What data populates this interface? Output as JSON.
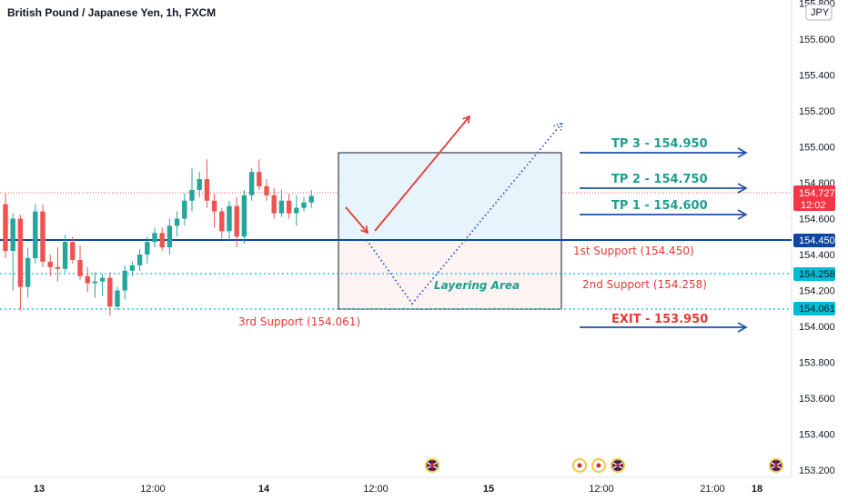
{
  "header": {
    "title": "British Pound / Japanese Yen, 1h, FXCM"
  },
  "currency_badge": "JPY",
  "price_axis": {
    "ticks": [
      "155.800",
      "155.600",
      "155.400",
      "155.200",
      "155.000",
      "154.800",
      "154.600",
      "154.400",
      "154.200",
      "154.000",
      "153.800",
      "153.600",
      "153.400",
      "153.200"
    ]
  },
  "time_axis": {
    "ticks": [
      "13",
      "12:00",
      "14",
      "12:00",
      "15",
      "12:00",
      "21:00",
      "18"
    ]
  },
  "tags": {
    "current": {
      "price": "154.727",
      "countdown": "12:02",
      "color": "#f23645"
    },
    "support1": {
      "price": "154.450",
      "color": "#0d47a1"
    },
    "support2": {
      "price": "154.258",
      "color": "#00bcd4"
    },
    "support3": {
      "price": "154.061",
      "color": "#00bcd4"
    }
  },
  "annotations": {
    "tp3": "TP 3 - 154.950",
    "tp2": "TP 2 - 154.750",
    "tp1": "TP 1 - 154.600",
    "support1": "1st Support (154.450)",
    "support2": "2nd Support (154.258)",
    "support3": "3rd Support (154.061)",
    "exit": "EXIT - 153.950",
    "layering": "Layering Area"
  },
  "colors": {
    "up": "#26a69a",
    "down": "#ef5350",
    "tp_text": "#1e9e8c",
    "support_text": "#e53935",
    "arrow_blue": "#1e4fa8",
    "arrow_red": "#e53935",
    "dotted_blue": "#2a52be"
  },
  "event_icons": [
    "uk-flag-icon",
    "japan-flag-icon",
    "japan-flag-icon",
    "uk-flag-icon",
    "uk-flag-icon"
  ],
  "chart_data": {
    "type": "candlestick",
    "title": "British Pound / Japanese Yen, 1h, FXCM",
    "ylim": [
      153.1,
      155.85
    ],
    "reference_lines": [
      154.727,
      154.45,
      154.258,
      154.061
    ],
    "zones": [
      {
        "label": "",
        "from": 154.45,
        "to": 154.95
      },
      {
        "label": "Layering Area",
        "from": 154.061,
        "to": 154.45
      }
    ],
    "ohlc": [
      [
        154.68,
        154.74,
        154.38,
        154.42
      ],
      [
        154.42,
        154.63,
        154.2,
        154.6
      ],
      [
        154.6,
        154.62,
        154.09,
        154.22
      ],
      [
        154.22,
        154.44,
        154.16,
        154.38
      ],
      [
        154.38,
        154.68,
        154.35,
        154.64
      ],
      [
        154.64,
        154.68,
        154.33,
        154.36
      ],
      [
        154.36,
        154.4,
        154.28,
        154.33
      ],
      [
        154.33,
        154.44,
        154.25,
        154.32
      ],
      [
        154.32,
        154.51,
        154.3,
        154.47
      ],
      [
        154.47,
        154.5,
        154.35,
        154.37
      ],
      [
        154.37,
        154.45,
        154.26,
        154.28
      ],
      [
        154.28,
        154.33,
        154.19,
        154.24
      ],
      [
        154.24,
        154.3,
        154.16,
        154.25
      ],
      [
        154.25,
        154.29,
        154.17,
        154.27
      ],
      [
        154.27,
        154.3,
        154.06,
        154.11
      ],
      [
        154.11,
        154.22,
        154.09,
        154.2
      ],
      [
        154.2,
        154.34,
        154.15,
        154.31
      ],
      [
        154.31,
        154.36,
        154.28,
        154.34
      ],
      [
        154.34,
        154.43,
        154.31,
        154.4
      ],
      [
        154.4,
        154.5,
        154.35,
        154.47
      ],
      [
        154.47,
        154.55,
        154.44,
        154.52
      ],
      [
        154.52,
        154.55,
        154.42,
        154.44
      ],
      [
        154.44,
        154.6,
        154.4,
        154.56
      ],
      [
        154.56,
        154.64,
        154.5,
        154.6
      ],
      [
        154.6,
        154.74,
        154.56,
        154.7
      ],
      [
        154.7,
        154.88,
        154.64,
        154.76
      ],
      [
        154.76,
        154.86,
        154.72,
        154.82
      ],
      [
        154.82,
        154.93,
        154.66,
        154.7
      ],
      [
        154.7,
        154.74,
        154.55,
        154.64
      ],
      [
        154.64,
        154.66,
        154.49,
        154.53
      ],
      [
        154.53,
        154.7,
        154.48,
        154.67
      ],
      [
        154.67,
        154.72,
        154.44,
        154.5
      ],
      [
        154.5,
        154.76,
        154.46,
        154.73
      ],
      [
        154.73,
        154.88,
        154.7,
        154.86
      ],
      [
        154.86,
        154.93,
        154.76,
        154.78
      ],
      [
        154.78,
        154.82,
        154.7,
        154.73
      ],
      [
        154.73,
        154.77,
        154.6,
        154.63
      ],
      [
        154.63,
        154.76,
        154.61,
        154.7
      ],
      [
        154.7,
        154.74,
        154.6,
        154.63
      ],
      [
        154.63,
        154.73,
        154.56,
        154.66
      ],
      [
        154.66,
        154.72,
        154.64,
        154.69
      ],
      [
        154.69,
        154.76,
        154.66,
        154.727
      ]
    ]
  }
}
